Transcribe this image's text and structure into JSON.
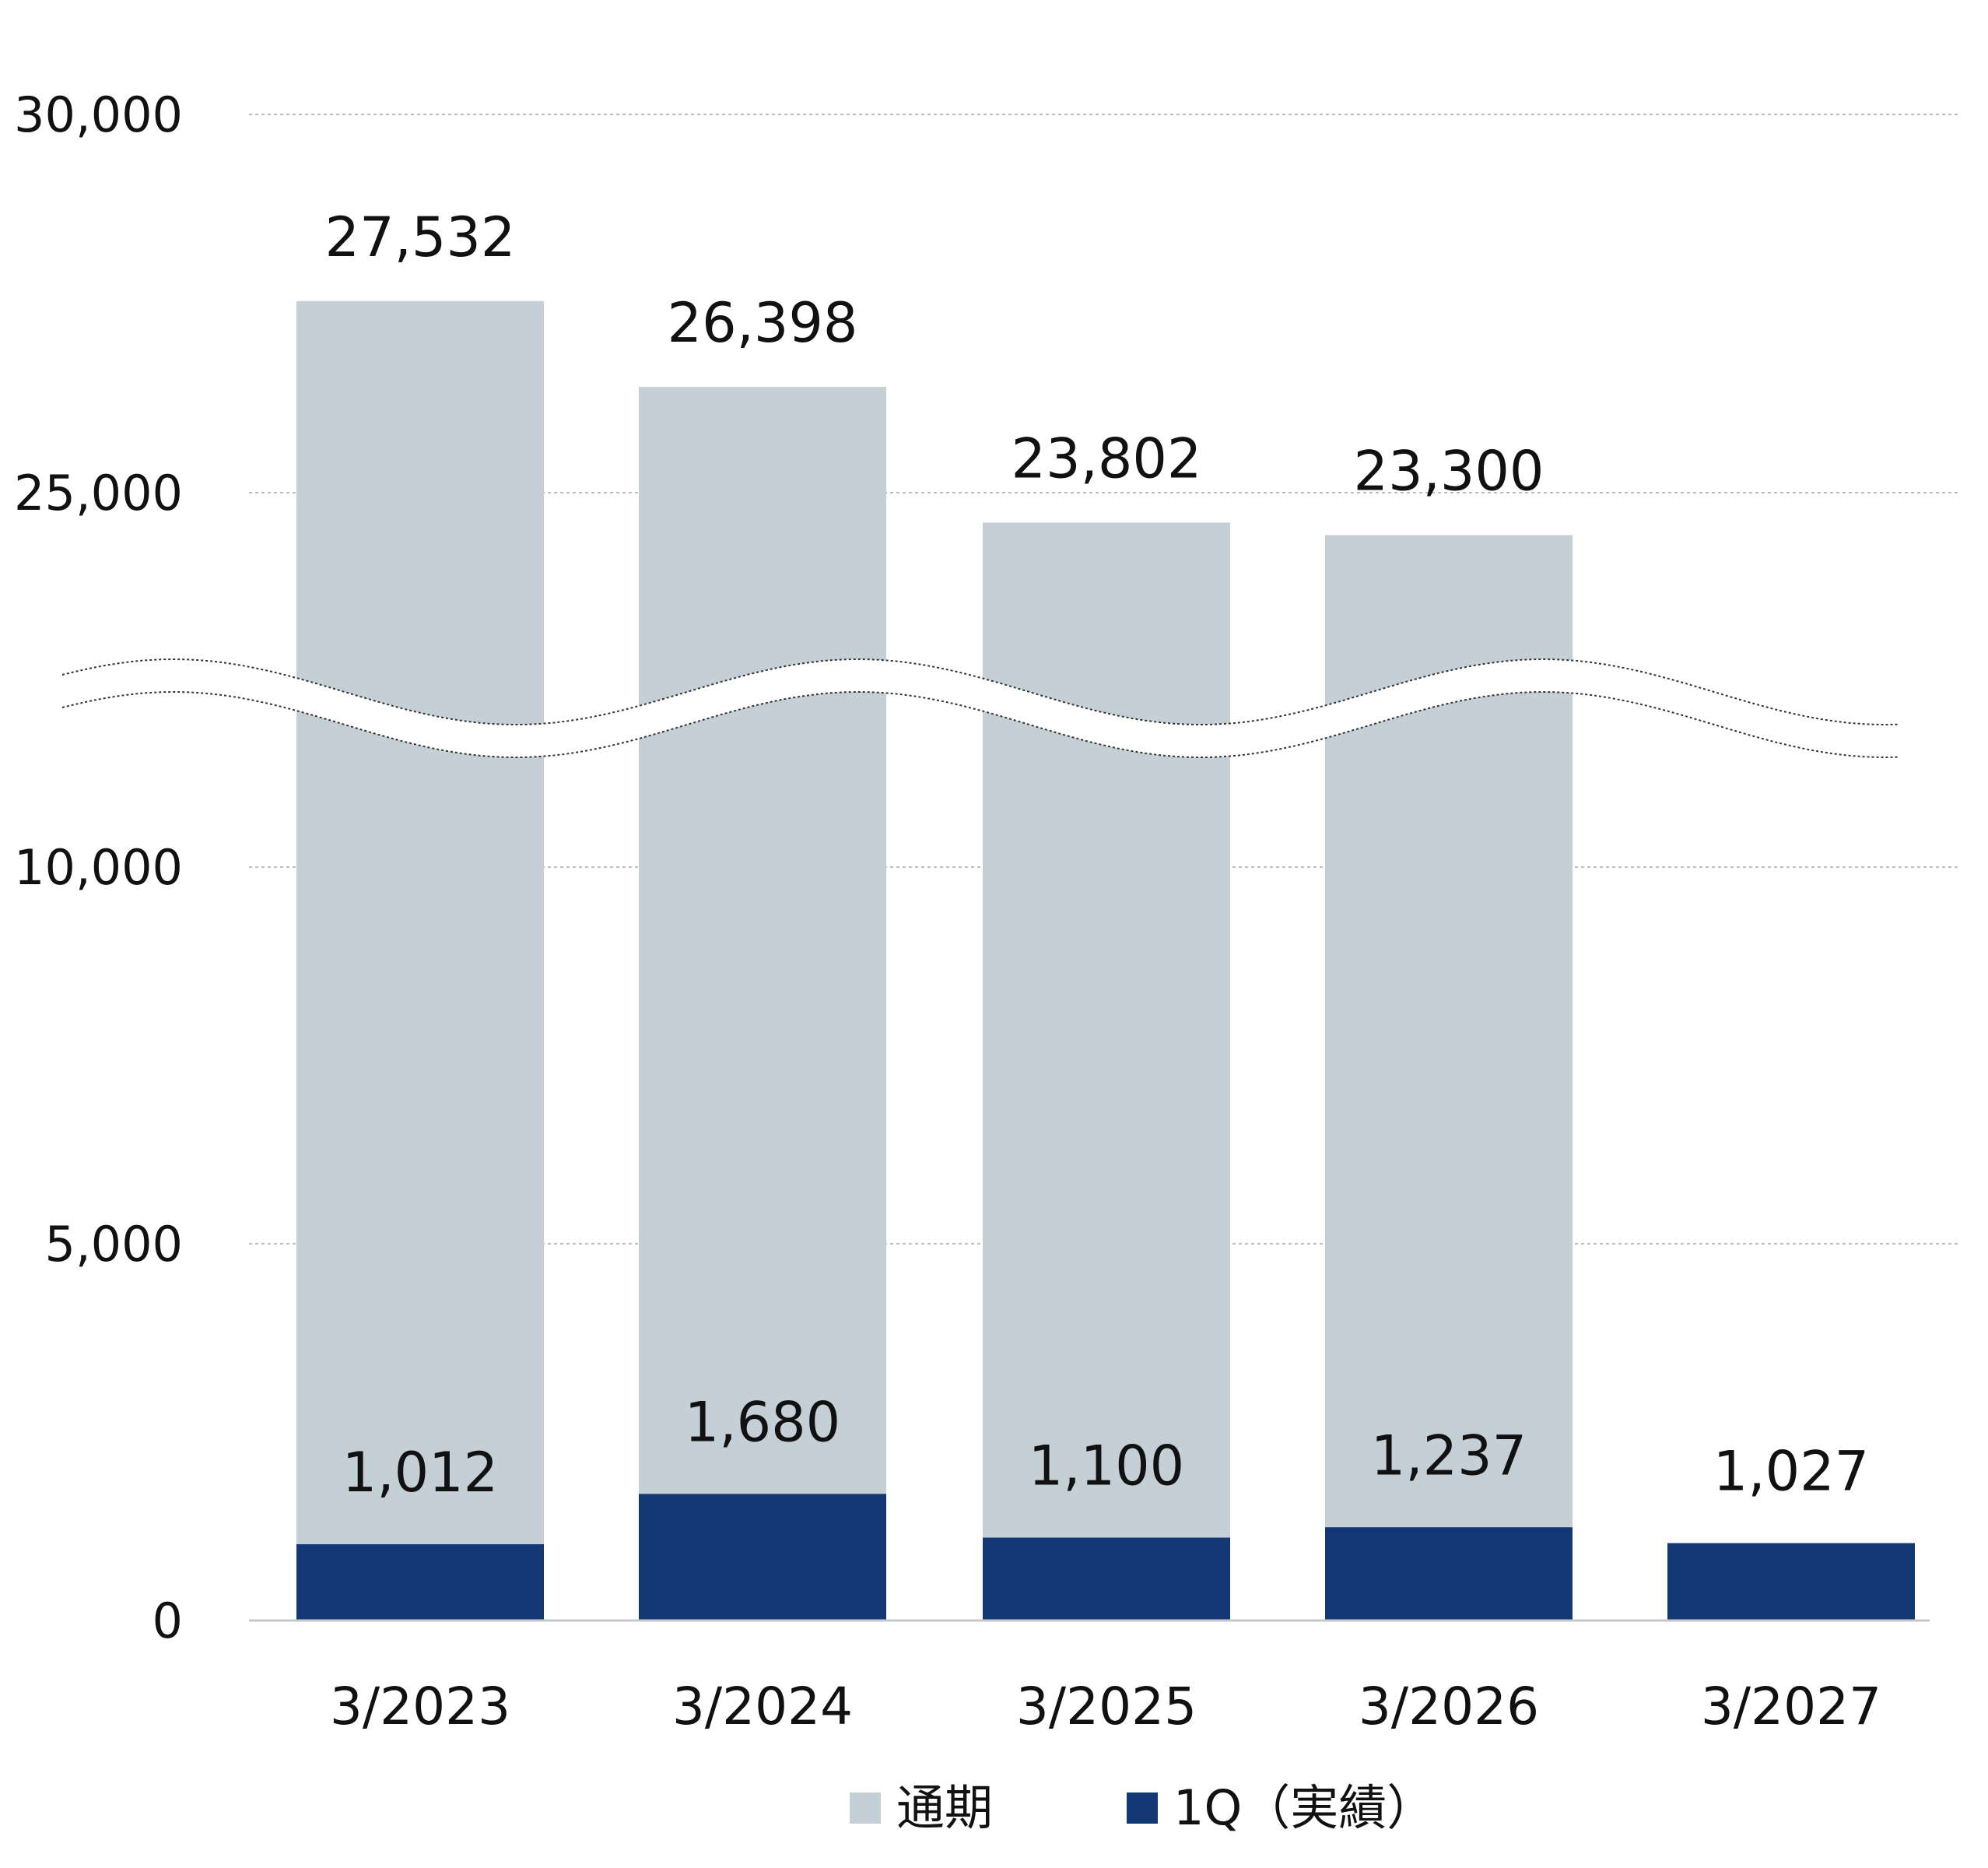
{
  "chart_data": {
    "type": "bar",
    "stacked": false,
    "overlapping": true,
    "y_axis_break": {
      "from": 10000,
      "to": 25000
    },
    "ylim": [
      0,
      30000
    ],
    "yticks": [
      0,
      5000,
      10000,
      25000,
      30000
    ],
    "ytick_labels": [
      "0",
      "5,000",
      "10,000",
      "25,000",
      "30,000"
    ],
    "grid": true,
    "legend_position": "bottom-center",
    "categories": [
      "3/2023",
      "3/2024",
      "3/2025",
      "3/2026",
      "3/2027"
    ],
    "series": [
      {
        "name": "通期",
        "color": "#c5cfd6",
        "values": [
          27532,
          26398,
          23802,
          23300,
          null
        ],
        "labels": [
          "27,532",
          "26,398",
          "23,802",
          "23,300",
          ""
        ]
      },
      {
        "name": "1Q（実績）",
        "color": "#133773",
        "values": [
          1012,
          1680,
          1100,
          1237,
          1027
        ],
        "labels": [
          "1,012",
          "1,680",
          "1,100",
          "1,237",
          "1,027"
        ]
      }
    ]
  }
}
